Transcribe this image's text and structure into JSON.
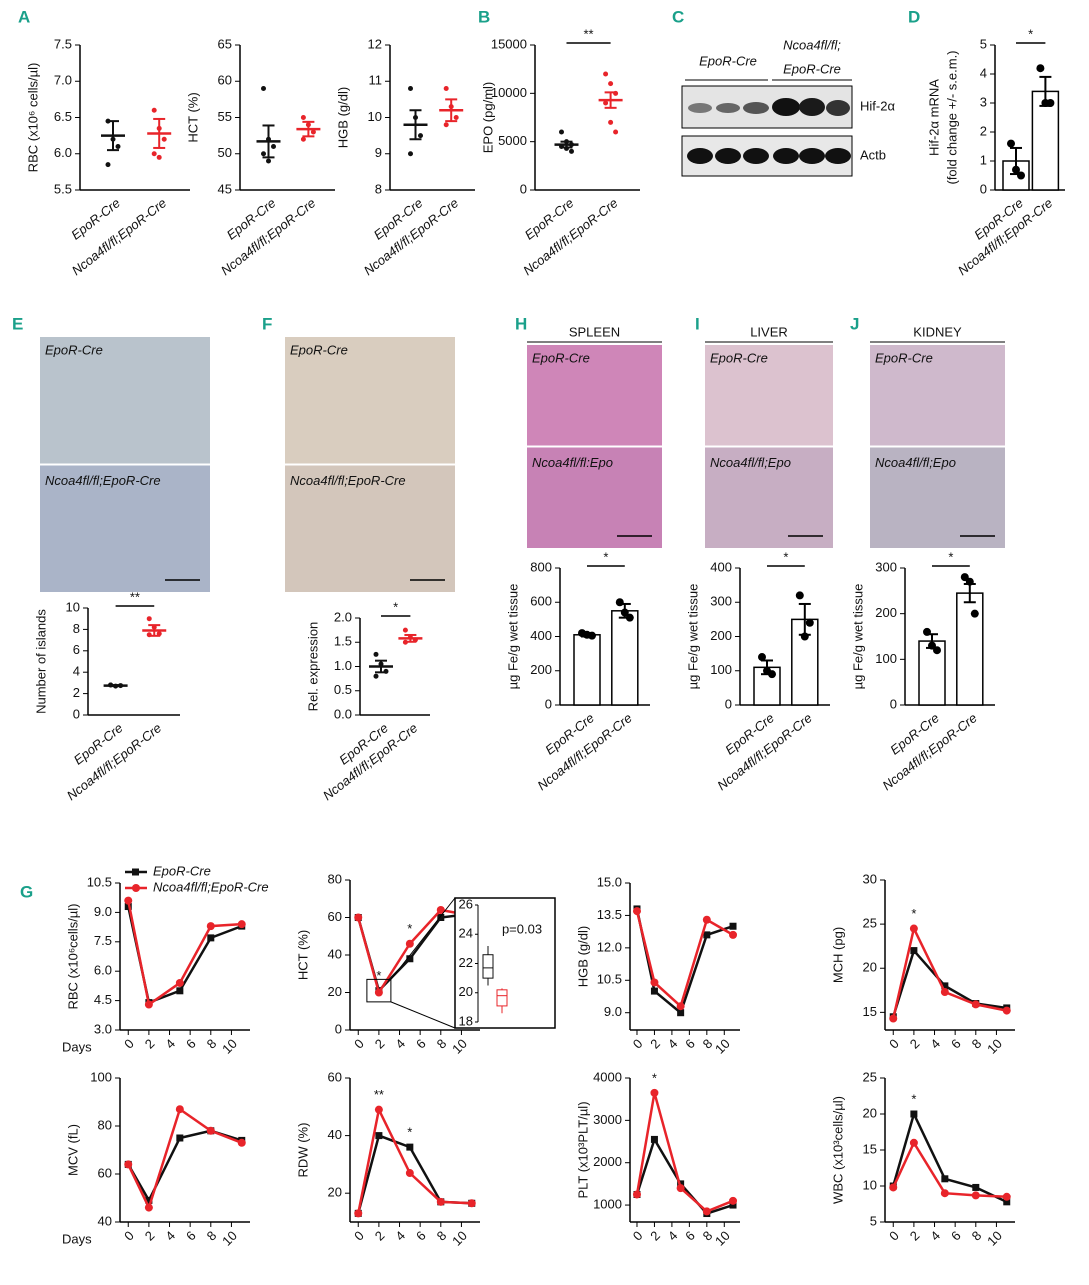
{
  "chart_data": [
    {
      "type": "dot",
      "panel": "A",
      "ylabel": "RBC (x10⁶ cells/µl)",
      "categories": [
        "EpoR-Cre",
        "Ncoa4fl/fl;EpoR-Cre"
      ],
      "ylim": [
        5.5,
        7.5
      ],
      "yticks": [
        5.5,
        {
          "value": 6,
          "label": "6.0"
        },
        6.5,
        {
          "value": 7,
          "label": "7.0"
        },
        7.5
      ],
      "groups": [
        {
          "color": "#111111",
          "points": [
            6.45,
            6.2,
            6.1,
            5.85
          ],
          "mean": 6.25,
          "sem": 0.2
        },
        {
          "color": "#e8242a",
          "points": [
            6.6,
            6.35,
            6.2,
            6.0,
            5.95
          ],
          "mean": 6.28,
          "sem": 0.2
        }
      ]
    },
    {
      "type": "dot",
      "ylabel": "HCT (%)",
      "categories": [
        "EpoR-Cre",
        "Ncoa4fl/fl;EpoR-Cre"
      ],
      "ylim": [
        45,
        65
      ],
      "yticks": [
        45,
        50,
        55,
        60,
        65
      ],
      "groups": [
        {
          "color": "#111111",
          "points": [
            59,
            52,
            51,
            50,
            49
          ],
          "mean": 51.7,
          "sem": 2.2
        },
        {
          "color": "#e8242a",
          "points": [
            55,
            54,
            53,
            52
          ],
          "mean": 53.4,
          "sem": 1
        }
      ]
    },
    {
      "type": "dot",
      "ylabel": "HGB (g/dl)",
      "categories": [
        "EpoR-Cre",
        "Ncoa4fl/fl;EpoR-Cre"
      ],
      "ylim": [
        8,
        12
      ],
      "yticks": [
        8,
        9,
        10,
        11,
        12
      ],
      "groups": [
        {
          "color": "#111111",
          "points": [
            10.8,
            10,
            9.5,
            9
          ],
          "mean": 9.8,
          "sem": 0.4
        },
        {
          "color": "#e8242a",
          "points": [
            10.8,
            10.3,
            10,
            9.8
          ],
          "mean": 10.2,
          "sem": 0.3
        }
      ]
    },
    {
      "type": "dot",
      "panel": "B",
      "ylabel": "EPO (pg/ml)",
      "categories": [
        "EpoR-Cre",
        "Ncoa4fl/fl;EpoR-Cre"
      ],
      "ylim": [
        0,
        15000
      ],
      "yticks": [
        0,
        5000,
        10000,
        15000
      ],
      "sig": "**",
      "groups": [
        {
          "color": "#111111",
          "points": [
            6000,
            5000,
            4700,
            4500,
            4300,
            4000
          ],
          "mean": 4700,
          "sem": 300
        },
        {
          "color": "#e8242a",
          "points": [
            12000,
            11000,
            10000,
            9000,
            7000,
            6000
          ],
          "mean": 9300,
          "sem": 800
        }
      ]
    },
    {
      "type": "bar",
      "panel": "D",
      "ylabel": "Hif-2α mRNA",
      "ylabel2": "(fold change +/- s.e.m.)",
      "categories": [
        "EpoR-Cre",
        "Ncoa4fl/fl;EpoR-Cre"
      ],
      "ylim": [
        0,
        5
      ],
      "yticks": [
        0,
        1,
        2,
        3,
        4,
        5
      ],
      "sig": "*",
      "groups": [
        {
          "points": [
            1.6,
            0.7,
            0.5
          ],
          "mean": 1.0,
          "sem": 0.45
        },
        {
          "points": [
            4.2,
            3.0,
            3.0
          ],
          "mean": 3.4,
          "sem": 0.5
        }
      ]
    },
    {
      "type": "dot",
      "ylabel": "Number of islands",
      "categories": [
        "EpoR-Cre",
        "Ncoa4fl/fl;EpoR-Cre"
      ],
      "ylim": [
        0,
        10
      ],
      "yticks": [
        0,
        2,
        4,
        6,
        8,
        10
      ],
      "sig": "**",
      "groups": [
        {
          "color": "#111111",
          "points": [
            2.8,
            2.7,
            2.75,
            2.8
          ],
          "mean": 2.75,
          "sem": 0.05
        },
        {
          "color": "#e8242a",
          "points": [
            9,
            8.2,
            7.6,
            7.5
          ],
          "mean": 7.9,
          "sem": 0.5
        }
      ]
    },
    {
      "type": "dot",
      "ylabel": "Rel. expression",
      "categories": [
        "EpoR-Cre",
        "Ncoa4fl/fl;EpoR-Cre"
      ],
      "ylim": [
        0,
        2
      ],
      "yticks": [
        {
          "value": 0,
          "label": "0.0"
        },
        0.5,
        {
          "value": 1,
          "label": "1.0"
        },
        1.5,
        {
          "value": 2,
          "label": "2.0"
        }
      ],
      "sig": "*",
      "groups": [
        {
          "color": "#111111",
          "points": [
            1.25,
            1.05,
            0.9,
            0.8
          ],
          "mean": 1.0,
          "sem": 0.12
        },
        {
          "color": "#e8242a",
          "points": [
            1.75,
            1.6,
            1.55,
            1.5
          ],
          "mean": 1.58,
          "sem": 0.07
        }
      ]
    },
    {
      "type": "bar",
      "ylabel": "µg Fe/g wet tissue",
      "categories": [
        "EpoR-Cre",
        "Ncoa4fl/fl;EpoR-Cre"
      ],
      "ylim": [
        0,
        800
      ],
      "yticks": [
        0,
        200,
        400,
        600,
        800
      ],
      "sig": "*",
      "groups": [
        {
          "points": [
            420,
            410,
            405
          ],
          "mean": 410,
          "sem": 10
        },
        {
          "points": [
            600,
            540,
            510
          ],
          "mean": 550,
          "sem": 40
        }
      ]
    },
    {
      "type": "bar",
      "ylabel": "µg Fe/g wet tissue",
      "categories": [
        "EpoR-Cre",
        "Ncoa4fl/fl;EpoR-Cre"
      ],
      "ylim": [
        0,
        400
      ],
      "yticks": [
        0,
        100,
        200,
        300,
        400
      ],
      "sig": "*",
      "groups": [
        {
          "points": [
            140,
            100,
            90
          ],
          "mean": 110,
          "sem": 20
        },
        {
          "points": [
            320,
            200,
            240
          ],
          "mean": 250,
          "sem": 45
        }
      ]
    },
    {
      "type": "bar",
      "ylabel": "µg Fe/g wet tissue",
      "categories": [
        "EpoR-Cre",
        "Ncoa4fl/fl;EpoR-Cre"
      ],
      "ylim": [
        0,
        300
      ],
      "yticks": [
        0,
        100,
        200,
        300
      ],
      "sig": "*",
      "groups": [
        {
          "points": [
            160,
            130,
            120
          ],
          "mean": 140,
          "sem": 15
        },
        {
          "points": [
            280,
            270,
            200
          ],
          "mean": 245,
          "sem": 20
        }
      ]
    },
    {
      "type": "line",
      "panel": "G",
      "ylabel": "RBC (x10⁶cells/µl)",
      "xlabel": "Days",
      "x": [
        0,
        2,
        5,
        8,
        11
      ],
      "xlim": [
        -0.8,
        11.8
      ],
      "xticks": [
        0,
        2,
        4,
        6,
        8,
        10
      ],
      "ylim": [
        3,
        10.5
      ],
      "yticks": [
        {
          "value": 3,
          "label": "3.0"
        },
        4.5,
        {
          "value": 6,
          "label": "6.0"
        },
        7.5,
        {
          "value": 9,
          "label": "9.0"
        },
        10.5
      ],
      "legend": "top-left",
      "series": [
        {
          "name": "EpoR-Cre",
          "color": "#111111",
          "values": [
            9.3,
            4.4,
            5.0,
            7.7,
            8.3
          ]
        },
        {
          "name": "Ncoa4fl/fl;EpoR-Cre",
          "color": "#e8242a",
          "values": [
            9.6,
            4.3,
            5.4,
            8.3,
            8.4
          ]
        }
      ]
    },
    {
      "type": "line",
      "ylabel": "HCT (%)",
      "x": [
        0,
        2,
        5,
        8,
        11
      ],
      "xlim": [
        -0.8,
        11.8
      ],
      "xticks": [
        0,
        2,
        4,
        6,
        8,
        10
      ],
      "ylim": [
        0,
        80
      ],
      "yticks": [
        0,
        20,
        40,
        60,
        80
      ],
      "annotations": [
        {
          "x": 2,
          "text": "*"
        },
        {
          "x": 5,
          "text": "*"
        }
      ],
      "inset": {
        "ylim": [
          18,
          26
        ],
        "yticks": [
          18,
          20,
          22,
          24,
          26
        ],
        "label": "p=0.03",
        "boxes": [
          {
            "color": "#111111",
            "low": 20.5,
            "q1": 21,
            "median": 21.7,
            "q3": 22.6,
            "high": 23.2
          },
          {
            "color": "#e8242a",
            "low": 18.6,
            "q1": 19.1,
            "median": 19.8,
            "q3": 20.2,
            "high": 20.3
          }
        ]
      },
      "series": [
        {
          "name": "EpoR-Cre",
          "color": "#111111",
          "values": [
            60,
            21,
            38,
            60,
            62
          ]
        },
        {
          "name": "Ncoa4fl/fl;EpoR-Cre",
          "color": "#e8242a",
          "values": [
            60,
            20,
            46,
            64,
            61
          ]
        }
      ]
    },
    {
      "type": "line",
      "ylabel": "HGB (g/dl)",
      "x": [
        0,
        2,
        5,
        8,
        11
      ],
      "xlim": [
        -0.8,
        11.8
      ],
      "xticks": [
        0,
        2,
        4,
        6,
        8,
        10
      ],
      "ylim": [
        8.2,
        15
      ],
      "yticks": [
        {
          "value": 9,
          "label": "9.0"
        },
        10.5,
        {
          "value": 12,
          "label": "12.0"
        },
        13.5,
        {
          "value": 15,
          "label": "15.0"
        }
      ],
      "series": [
        {
          "name": "EpoR-Cre",
          "color": "#111111",
          "values": [
            13.8,
            10,
            9.0,
            12.6,
            13.0
          ]
        },
        {
          "name": "Ncoa4fl/fl;EpoR-Cre",
          "color": "#e8242a",
          "values": [
            13.7,
            10.4,
            9.3,
            13.3,
            12.6
          ]
        }
      ]
    },
    {
      "type": "line",
      "ylabel": "MCH (pg)",
      "x": [
        0,
        2,
        5,
        8,
        11
      ],
      "xlim": [
        -0.8,
        11.8
      ],
      "xticks": [
        0,
        2,
        4,
        6,
        8,
        10
      ],
      "ylim": [
        13,
        30
      ],
      "yticks": [
        15,
        20,
        25,
        30
      ],
      "annotations": [
        {
          "x": 2,
          "text": "*"
        }
      ],
      "series": [
        {
          "name": "EpoR-Cre",
          "color": "#111111",
          "values": [
            14.5,
            22,
            18,
            16,
            15.5
          ]
        },
        {
          "name": "Ncoa4fl/fl;EpoR-Cre",
          "color": "#e8242a",
          "values": [
            14.3,
            24.5,
            17.3,
            15.9,
            15.2
          ]
        }
      ]
    },
    {
      "type": "line",
      "ylabel": "MCV (fL)",
      "xlabel": "Days",
      "x": [
        0,
        2,
        5,
        8,
        11
      ],
      "xlim": [
        -0.8,
        11.8
      ],
      "xticks": [
        0,
        2,
        4,
        6,
        8,
        10
      ],
      "ylim": [
        40,
        100
      ],
      "yticks": [
        40,
        60,
        80,
        100
      ],
      "series": [
        {
          "name": "EpoR-Cre",
          "color": "#111111",
          "values": [
            64,
            49,
            75,
            78,
            74
          ]
        },
        {
          "name": "Ncoa4fl/fl;EpoR-Cre",
          "color": "#e8242a",
          "values": [
            64,
            46,
            87,
            78,
            73
          ]
        }
      ]
    },
    {
      "type": "line",
      "ylabel": "RDW (%)",
      "x": [
        0,
        2,
        5,
        8,
        11
      ],
      "xlim": [
        -0.8,
        11.8
      ],
      "xticks": [
        0,
        2,
        4,
        6,
        8,
        10
      ],
      "ylim": [
        10,
        60
      ],
      "yticks": [
        20,
        40,
        60
      ],
      "annotations": [
        {
          "x": 2,
          "text": "**"
        },
        {
          "x": 5,
          "text": "*"
        }
      ],
      "series": [
        {
          "name": "EpoR-Cre",
          "color": "#111111",
          "values": [
            13,
            40,
            36,
            17,
            16.5
          ]
        },
        {
          "name": "Ncoa4fl/fl;EpoR-Cre",
          "color": "#e8242a",
          "values": [
            13,
            49,
            27,
            17,
            16.5
          ]
        }
      ]
    },
    {
      "type": "line",
      "ylabel": "PLT (x10³PLT/µl)",
      "x": [
        0,
        2,
        5,
        8,
        11
      ],
      "xlim": [
        -0.8,
        11.8
      ],
      "xticks": [
        0,
        2,
        4,
        6,
        8,
        10
      ],
      "ylim": [
        600,
        4000
      ],
      "yticks": [
        1000,
        2000,
        3000,
        4000
      ],
      "annotations": [
        {
          "x": 2,
          "text": "*"
        }
      ],
      "series": [
        {
          "name": "EpoR-Cre",
          "color": "#111111",
          "values": [
            1250,
            2550,
            1500,
            800,
            1000
          ]
        },
        {
          "name": "Ncoa4fl/fl;EpoR-Cre",
          "color": "#e8242a",
          "values": [
            1250,
            3650,
            1400,
            850,
            1100
          ]
        }
      ]
    },
    {
      "type": "line",
      "ylabel": "WBC (x10³cells/µl)",
      "x": [
        0,
        2,
        5,
        8,
        11
      ],
      "xlim": [
        -0.8,
        11.8
      ],
      "xticks": [
        0,
        2,
        4,
        6,
        8,
        10
      ],
      "ylim": [
        5,
        25
      ],
      "yticks": [
        5,
        10,
        15,
        20,
        25
      ],
      "annotations": [
        {
          "x": 2,
          "text": "*"
        }
      ],
      "series": [
        {
          "name": "EpoR-Cre",
          "color": "#111111",
          "values": [
            10,
            20,
            11,
            9.8,
            7.8
          ]
        },
        {
          "name": "Ncoa4fl/fl;EpoR-Cre",
          "color": "#e8242a",
          "values": [
            9.8,
            16,
            9,
            8.7,
            8.5
          ]
        }
      ]
    }
  ],
  "blot": {
    "panel": "C",
    "groups": [
      "EpoR-Cre",
      "Ncoa4fl/fl;",
      "EpoR-Cre"
    ],
    "bands": [
      "Hif-2α",
      "Actb"
    ]
  },
  "images": [
    {
      "panel": "E",
      "top": "EpoR-Cre",
      "bottom": "Ncoa4fl/fl;EpoR-Cre"
    },
    {
      "panel": "F",
      "top": "EpoR-Cre",
      "bottom": "Ncoa4fl/fl;EpoR-Cre"
    },
    {
      "panel": "H",
      "title": "SPLEEN",
      "top": "EpoR-Cre",
      "bottom": "Ncoa4fl/fl:Epo"
    },
    {
      "panel": "I",
      "title": "LIVER",
      "top": "EpoR-Cre",
      "bottom": "Ncoa4fl/fl;Epo"
    },
    {
      "panel": "J",
      "title": "KIDNEY",
      "top": "EpoR-Cre",
      "bottom": "Ncoa4fl/fl;Epo"
    }
  ]
}
